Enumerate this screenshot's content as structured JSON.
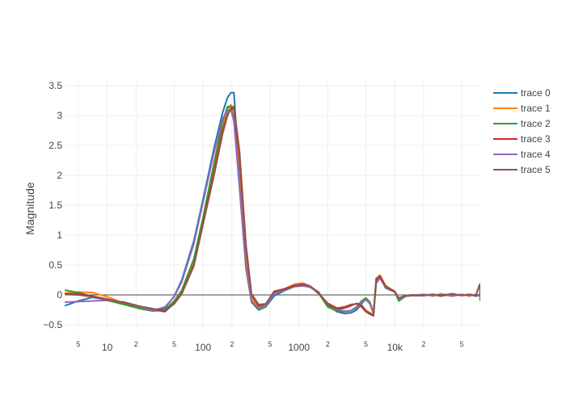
{
  "chart_data": {
    "type": "line",
    "title": "",
    "xlabel": "",
    "ylabel": "Magnitude",
    "x_scale": "log",
    "xlim": [
      3.6,
      78000
    ],
    "ylim": [
      -0.58,
      3.58
    ],
    "grid": true,
    "legend_position": "top-right",
    "x_ticks": [
      {
        "value": 5,
        "label": "5",
        "major": false
      },
      {
        "value": 10,
        "label": "10",
        "major": true
      },
      {
        "value": 20,
        "label": "2",
        "major": false
      },
      {
        "value": 50,
        "label": "5",
        "major": false
      },
      {
        "value": 100,
        "label": "100",
        "major": true
      },
      {
        "value": 200,
        "label": "2",
        "major": false
      },
      {
        "value": 500,
        "label": "5",
        "major": false
      },
      {
        "value": 1000,
        "label": "1000",
        "major": true
      },
      {
        "value": 2000,
        "label": "2",
        "major": false
      },
      {
        "value": 5000,
        "label": "5",
        "major": false
      },
      {
        "value": 10000,
        "label": "10k",
        "major": true
      },
      {
        "value": 20000,
        "label": "2",
        "major": false
      },
      {
        "value": 50000,
        "label": "5",
        "major": false
      }
    ],
    "y_ticks": [
      {
        "value": -0.5,
        "label": "−0.5"
      },
      {
        "value": 0,
        "label": "0"
      },
      {
        "value": 0.5,
        "label": "0.5"
      },
      {
        "value": 1,
        "label": "1"
      },
      {
        "value": 1.5,
        "label": "1.5"
      },
      {
        "value": 2,
        "label": "2"
      },
      {
        "value": 2.5,
        "label": "2.5"
      },
      {
        "value": 3,
        "label": "3"
      },
      {
        "value": 3.5,
        "label": "3.5"
      }
    ],
    "series": [
      {
        "name": "trace 0",
        "color": "#1f77b4",
        "x": [
          3.6,
          5,
          7,
          10,
          15,
          22,
          30,
          40,
          50,
          60,
          80,
          100,
          130,
          160,
          180,
          195,
          210,
          240,
          280,
          320,
          380,
          450,
          550,
          700,
          900,
          1100,
          1300,
          1600,
          2000,
          2500,
          3000,
          3500,
          4000,
          4500,
          5000,
          5500,
          6000,
          6400,
          7000,
          8000,
          9000,
          10000,
          11000,
          13000,
          15000,
          20000,
          25000,
          30000,
          40000,
          50000,
          60000,
          70000,
          78000
        ],
        "y": [
          -0.18,
          -0.1,
          -0.04,
          -0.08,
          -0.15,
          -0.22,
          -0.26,
          -0.22,
          -0.02,
          0.25,
          0.9,
          1.6,
          2.45,
          3.05,
          3.3,
          3.38,
          3.38,
          1.9,
          0.5,
          -0.12,
          -0.25,
          -0.2,
          -0.02,
          0.07,
          0.14,
          0.16,
          0.14,
          0.05,
          -0.18,
          -0.28,
          -0.31,
          -0.3,
          -0.25,
          -0.15,
          -0.06,
          -0.12,
          -0.3,
          0.2,
          0.3,
          0.12,
          0.08,
          0.05,
          -0.08,
          -0.02,
          -0.01,
          -0.01,
          0.01,
          -0.02,
          0.02,
          -0.01,
          0.01,
          -0.02,
          0.0
        ]
      },
      {
        "name": "trace 1",
        "color": "#ff7f0e",
        "x": [
          3.6,
          5,
          7,
          10,
          15,
          22,
          30,
          40,
          50,
          60,
          80,
          100,
          130,
          160,
          180,
          195,
          210,
          240,
          280,
          320,
          380,
          450,
          550,
          700,
          900,
          1100,
          1300,
          1600,
          2000,
          2500,
          3000,
          3500,
          4000,
          4500,
          5000,
          5500,
          6000,
          6400,
          7000,
          8000,
          9000,
          10000,
          11000,
          13000,
          15000,
          20000,
          25000,
          30000,
          40000,
          50000,
          60000,
          70000,
          78000
        ],
        "y": [
          0.03,
          0.05,
          0.04,
          -0.03,
          -0.14,
          -0.21,
          -0.26,
          -0.27,
          -0.12,
          0.05,
          0.55,
          1.25,
          2.1,
          2.8,
          3.1,
          3.18,
          3.1,
          2.2,
          0.7,
          -0.05,
          -0.2,
          -0.18,
          0.05,
          0.1,
          0.18,
          0.2,
          0.15,
          0.02,
          -0.15,
          -0.25,
          -0.28,
          -0.27,
          -0.2,
          -0.1,
          -0.08,
          -0.15,
          -0.32,
          0.28,
          0.33,
          0.16,
          0.1,
          0.06,
          -0.05,
          -0.01,
          -0.01,
          0.01,
          -0.02,
          0.02,
          -0.01,
          0.01,
          -0.02,
          0.01,
          0.0
        ]
      },
      {
        "name": "trace 2",
        "color": "#2ca02c",
        "x": [
          3.6,
          5,
          7,
          10,
          15,
          22,
          30,
          40,
          50,
          60,
          80,
          100,
          130,
          160,
          180,
          195,
          210,
          240,
          280,
          320,
          380,
          450,
          550,
          700,
          900,
          1100,
          1300,
          1600,
          2000,
          2500,
          3000,
          3500,
          4000,
          4500,
          5000,
          5500,
          6000,
          6400,
          7000,
          8000,
          9000,
          10000,
          11000,
          13000,
          15000,
          20000,
          25000,
          30000,
          40000,
          50000,
          60000,
          70000,
          78000
        ],
        "y": [
          0.08,
          0.04,
          -0.02,
          -0.09,
          -0.16,
          -0.23,
          -0.27,
          -0.25,
          -0.1,
          0.08,
          0.6,
          1.3,
          2.2,
          2.9,
          3.15,
          3.15,
          2.95,
          1.8,
          0.45,
          -0.12,
          -0.24,
          -0.2,
          0.03,
          0.09,
          0.16,
          0.17,
          0.14,
          0.03,
          -0.2,
          -0.27,
          -0.28,
          -0.26,
          -0.2,
          -0.1,
          -0.05,
          -0.12,
          -0.3,
          0.22,
          0.3,
          0.14,
          0.1,
          0.06,
          -0.1,
          -0.02,
          -0.01,
          -0.01,
          0.01,
          -0.02,
          0.02,
          -0.01,
          0.01,
          -0.01,
          0.0
        ]
      },
      {
        "name": "trace 3",
        "color": "#d62728",
        "x": [
          3.6,
          5,
          7,
          10,
          15,
          22,
          30,
          40,
          50,
          60,
          80,
          100,
          130,
          160,
          180,
          195,
          210,
          240,
          280,
          320,
          380,
          450,
          550,
          700,
          900,
          1100,
          1300,
          1600,
          2000,
          2500,
          3000,
          3500,
          4000,
          4500,
          5000,
          5500,
          6000,
          6400,
          7000,
          8000,
          9000,
          10000,
          11000,
          13000,
          15000,
          20000,
          25000,
          30000,
          40000,
          50000,
          60000,
          70000,
          78000
        ],
        "y": [
          0.02,
          0.02,
          -0.02,
          -0.07,
          -0.13,
          -0.2,
          -0.24,
          -0.28,
          -0.14,
          0.03,
          0.5,
          1.2,
          2.05,
          2.75,
          3.02,
          3.1,
          3.12,
          2.3,
          0.8,
          0.0,
          -0.18,
          -0.16,
          0.06,
          0.1,
          0.16,
          0.18,
          0.15,
          0.03,
          -0.14,
          -0.22,
          -0.2,
          -0.16,
          -0.15,
          -0.2,
          -0.28,
          -0.32,
          -0.35,
          0.25,
          0.32,
          0.15,
          0.1,
          0.06,
          -0.06,
          -0.01,
          0.0,
          -0.01,
          0.01,
          -0.01,
          0.01,
          -0.01,
          0.01,
          -0.01,
          0.0
        ]
      },
      {
        "name": "trace 4",
        "color": "#9467bd",
        "x": [
          3.6,
          5,
          7,
          10,
          15,
          22,
          30,
          40,
          50,
          60,
          80,
          100,
          130,
          160,
          180,
          195,
          210,
          240,
          280,
          320,
          380,
          450,
          550,
          700,
          900,
          1100,
          1300,
          1600,
          2000,
          2500,
          3000,
          3500,
          4000,
          4500,
          5000,
          5500,
          6000,
          6400,
          7000,
          8000,
          9000,
          10000,
          11000,
          13000,
          15000,
          20000,
          25000,
          30000,
          40000,
          50000,
          60000,
          70000,
          78000
        ],
        "y": [
          -0.12,
          -0.11,
          -0.1,
          -0.09,
          -0.12,
          -0.2,
          -0.26,
          -0.2,
          -0.03,
          0.22,
          0.85,
          1.55,
          2.38,
          2.95,
          3.08,
          3.1,
          2.9,
          1.8,
          0.45,
          -0.1,
          -0.22,
          -0.18,
          0.02,
          0.08,
          0.14,
          0.15,
          0.13,
          0.04,
          -0.16,
          -0.25,
          -0.27,
          -0.26,
          -0.22,
          -0.12,
          -0.08,
          -0.13,
          -0.28,
          0.2,
          0.28,
          0.14,
          0.09,
          0.05,
          -0.06,
          -0.02,
          -0.01,
          0.01,
          -0.01,
          0.01,
          -0.02,
          0.01,
          -0.01,
          0.01,
          0.0
        ]
      },
      {
        "name": "trace 5",
        "color": "#8c564b",
        "x": [
          3.6,
          5,
          7,
          10,
          15,
          22,
          30,
          40,
          50,
          60,
          80,
          100,
          130,
          160,
          180,
          195,
          210,
          240,
          280,
          320,
          380,
          450,
          550,
          700,
          900,
          1100,
          1300,
          1600,
          2000,
          2500,
          3000,
          3500,
          4000,
          4500,
          5000,
          5500,
          6000,
          6400,
          7000,
          8000,
          9000,
          10000,
          11000,
          13000,
          15000,
          20000,
          25000,
          30000,
          40000,
          50000,
          60000,
          70000,
          77000,
          78000
        ],
        "y": [
          0.01,
          0.0,
          -0.03,
          -0.08,
          -0.12,
          -0.19,
          -0.23,
          -0.26,
          -0.15,
          0.02,
          0.48,
          1.18,
          2.0,
          2.7,
          3.0,
          3.12,
          3.15,
          2.4,
          0.85,
          0.02,
          -0.16,
          -0.15,
          0.05,
          0.09,
          0.15,
          0.17,
          0.15,
          0.04,
          -0.16,
          -0.24,
          -0.22,
          -0.18,
          -0.14,
          -0.17,
          -0.26,
          -0.3,
          -0.34,
          0.27,
          0.3,
          0.13,
          0.09,
          0.05,
          -0.05,
          -0.01,
          0.0,
          -0.01,
          0.01,
          -0.01,
          0.02,
          -0.01,
          0.01,
          -0.01,
          0.18,
          -0.1
        ]
      }
    ]
  }
}
